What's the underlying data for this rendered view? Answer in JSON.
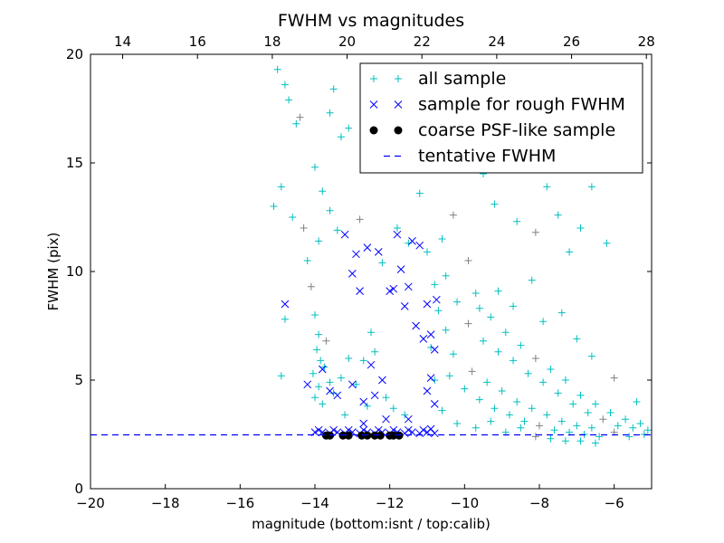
{
  "chart_data": {
    "type": "scatter",
    "title": "FWHM vs magnitudes",
    "xlabel": "magnitude (bottom:isnt / top:calib)",
    "ylabel": "FWHM (pix)",
    "xlim": [
      -20,
      -5
    ],
    "ylim": [
      0,
      20
    ],
    "top_xlim": [
      13.14,
      28.14
    ],
    "x_ticks": [
      -20,
      -18,
      -16,
      -14,
      -12,
      -10,
      -8,
      -6
    ],
    "x_tick_labels": [
      "−20",
      "−18",
      "−16",
      "−14",
      "−12",
      "−10",
      "−8",
      "−6"
    ],
    "top_x_ticks": [
      14,
      16,
      18,
      20,
      22,
      24,
      26,
      28
    ],
    "y_ticks": [
      0,
      5,
      10,
      15,
      20
    ],
    "legend_position": "top-right",
    "grid": false,
    "series": [
      {
        "name": "all sample",
        "marker": "plus",
        "color": "#00bfbf",
        "points": [
          [
            -15.0,
            19.3
          ],
          [
            -14.8,
            18.6
          ],
          [
            -14.7,
            17.9
          ],
          [
            -14.5,
            16.8
          ],
          [
            -14.4,
            17.1
          ],
          [
            -13.5,
            18.4
          ],
          [
            -13.6,
            17.3
          ],
          [
            -13.3,
            16.2
          ],
          [
            -13.1,
            16.6
          ],
          [
            -12.6,
            15.2
          ],
          [
            -15.1,
            13.0
          ],
          [
            -14.9,
            13.9
          ],
          [
            -14.6,
            12.5
          ],
          [
            -14.3,
            12.0
          ],
          [
            -14.0,
            14.8
          ],
          [
            -13.8,
            13.7
          ],
          [
            -13.6,
            12.8
          ],
          [
            -13.9,
            11.4
          ],
          [
            -13.4,
            11.9
          ],
          [
            -14.2,
            10.5
          ],
          [
            -14.8,
            7.8
          ],
          [
            -14.9,
            5.2
          ],
          [
            -14.1,
            9.3
          ],
          [
            -14.0,
            8.0
          ],
          [
            -13.9,
            7.1
          ],
          [
            -13.95,
            6.4
          ],
          [
            -13.85,
            5.9
          ],
          [
            -14.05,
            5.3
          ],
          [
            -13.9,
            4.7
          ],
          [
            -14.0,
            4.2
          ],
          [
            -13.8,
            3.9
          ],
          [
            -13.7,
            6.8
          ],
          [
            -13.75,
            5.6
          ],
          [
            -13.6,
            4.9
          ],
          [
            -13.5,
            4.4
          ],
          [
            -13.3,
            5.1
          ],
          [
            -13.1,
            6.0
          ],
          [
            -12.9,
            4.8
          ],
          [
            -12.7,
            5.9
          ],
          [
            -12.5,
            7.2
          ],
          [
            -12.8,
            12.4
          ],
          [
            -12.2,
            10.4
          ],
          [
            -11.8,
            12.0
          ],
          [
            -11.5,
            11.3
          ],
          [
            -11.2,
            13.6
          ],
          [
            -11.0,
            10.9
          ],
          [
            -10.8,
            9.4
          ],
          [
            -10.7,
            8.2
          ],
          [
            -10.6,
            11.5
          ],
          [
            -10.3,
            12.6
          ],
          [
            -10.1,
            15.2
          ],
          [
            -9.8,
            17.4
          ],
          [
            -9.5,
            14.5
          ],
          [
            -9.2,
            13.1
          ],
          [
            -9.0,
            16.0
          ],
          [
            -8.8,
            18.0
          ],
          [
            -8.6,
            12.3
          ],
          [
            -8.4,
            14.7
          ],
          [
            -8.1,
            11.8
          ],
          [
            -7.8,
            13.9
          ],
          [
            -7.5,
            12.6
          ],
          [
            -7.2,
            10.9
          ],
          [
            -6.9,
            12.0
          ],
          [
            -6.6,
            13.9
          ],
          [
            -6.2,
            11.3
          ],
          [
            -10.5,
            9.8
          ],
          [
            -10.2,
            8.6
          ],
          [
            -9.9,
            7.6
          ],
          [
            -9.7,
            9.0
          ],
          [
            -9.5,
            6.8
          ],
          [
            -9.3,
            7.9
          ],
          [
            -9.1,
            6.3
          ],
          [
            -8.9,
            7.2
          ],
          [
            -8.7,
            5.9
          ],
          [
            -8.5,
            6.6
          ],
          [
            -8.3,
            5.3
          ],
          [
            -8.1,
            6.0
          ],
          [
            -7.9,
            4.9
          ],
          [
            -7.7,
            5.5
          ],
          [
            -7.5,
            4.4
          ],
          [
            -7.3,
            5.0
          ],
          [
            -7.1,
            3.9
          ],
          [
            -6.9,
            4.3
          ],
          [
            -6.7,
            3.5
          ],
          [
            -6.5,
            3.9
          ],
          [
            -6.3,
            3.2
          ],
          [
            -6.1,
            3.5
          ],
          [
            -5.9,
            2.9
          ],
          [
            -5.7,
            3.2
          ],
          [
            -5.5,
            2.8
          ],
          [
            -5.3,
            3.0
          ],
          [
            -5.1,
            2.7
          ],
          [
            -10.4,
            5.2
          ],
          [
            -10.0,
            4.6
          ],
          [
            -9.8,
            5.4
          ],
          [
            -9.6,
            4.1
          ],
          [
            -9.4,
            4.9
          ],
          [
            -9.2,
            3.7
          ],
          [
            -9.0,
            4.5
          ],
          [
            -8.8,
            3.4
          ],
          [
            -8.6,
            4.0
          ],
          [
            -8.4,
            3.1
          ],
          [
            -8.2,
            3.7
          ],
          [
            -8.0,
            2.9
          ],
          [
            -7.8,
            3.4
          ],
          [
            -7.6,
            2.7
          ],
          [
            -7.4,
            3.1
          ],
          [
            -7.2,
            2.6
          ],
          [
            -7.0,
            2.9
          ],
          [
            -6.8,
            2.5
          ],
          [
            -6.6,
            2.8
          ],
          [
            -6.4,
            2.4
          ],
          [
            -6.0,
            2.6
          ],
          [
            -5.6,
            2.4
          ],
          [
            -5.2,
            2.5
          ],
          [
            -10.6,
            3.6
          ],
          [
            -10.2,
            3.0
          ],
          [
            -9.7,
            2.8
          ],
          [
            -9.3,
            3.1
          ],
          [
            -8.9,
            2.6
          ],
          [
            -8.5,
            2.8
          ],
          [
            -8.1,
            2.4
          ],
          [
            -7.7,
            2.3
          ],
          [
            -7.3,
            2.2
          ],
          [
            -6.9,
            2.2
          ],
          [
            -6.5,
            2.1
          ],
          [
            -10.9,
            6.5
          ],
          [
            -10.8,
            5.0
          ],
          [
            -10.5,
            7.3
          ],
          [
            -10.3,
            6.2
          ],
          [
            -9.9,
            10.5
          ],
          [
            -9.6,
            8.3
          ],
          [
            -9.1,
            9.1
          ],
          [
            -8.7,
            8.4
          ],
          [
            -8.2,
            9.6
          ],
          [
            -7.9,
            7.7
          ],
          [
            -7.4,
            8.1
          ],
          [
            -7.0,
            6.9
          ],
          [
            -6.6,
            6.1
          ],
          [
            -6.0,
            5.1
          ],
          [
            -5.4,
            4.0
          ],
          [
            -12.4,
            6.3
          ],
          [
            -12.1,
            4.2
          ],
          [
            -11.9,
            3.7
          ],
          [
            -11.6,
            3.4
          ],
          [
            -12.6,
            3.8
          ],
          [
            -13.2,
            3.4
          ]
        ]
      },
      {
        "name": "sample for rough FWHM",
        "marker": "x",
        "color": "#0000ff",
        "points": [
          [
            -14.8,
            8.5
          ],
          [
            -14.2,
            4.8
          ],
          [
            -13.8,
            5.5
          ],
          [
            -13.6,
            4.5
          ],
          [
            -13.4,
            4.3
          ],
          [
            -13.2,
            11.7
          ],
          [
            -13.0,
            9.9
          ],
          [
            -12.9,
            10.8
          ],
          [
            -12.8,
            9.1
          ],
          [
            -12.6,
            11.1
          ],
          [
            -12.5,
            5.7
          ],
          [
            -12.4,
            4.3
          ],
          [
            -12.3,
            10.9
          ],
          [
            -12.2,
            5.0
          ],
          [
            -12.0,
            9.1
          ],
          [
            -11.9,
            9.2
          ],
          [
            -11.8,
            11.7
          ],
          [
            -11.7,
            10.1
          ],
          [
            -11.6,
            8.4
          ],
          [
            -11.5,
            9.3
          ],
          [
            -11.4,
            11.4
          ],
          [
            -11.3,
            7.5
          ],
          [
            -11.2,
            11.2
          ],
          [
            -11.1,
            6.9
          ],
          [
            -11.0,
            8.5
          ],
          [
            -11.0,
            4.5
          ],
          [
            -10.9,
            7.1
          ],
          [
            -10.9,
            5.1
          ],
          [
            -10.8,
            6.4
          ],
          [
            -10.8,
            3.9
          ],
          [
            -10.75,
            8.7
          ],
          [
            -12.7,
            4.0
          ],
          [
            -13.0,
            4.8
          ],
          [
            -12.1,
            3.2
          ],
          [
            -11.5,
            3.2
          ],
          [
            -12.7,
            3.0
          ],
          [
            -14.0,
            2.6
          ],
          [
            -13.8,
            2.6
          ],
          [
            -13.6,
            2.55
          ],
          [
            -13.4,
            2.6
          ],
          [
            -13.2,
            2.55
          ],
          [
            -13.0,
            2.6
          ],
          [
            -12.8,
            2.55
          ],
          [
            -12.6,
            2.6
          ],
          [
            -12.4,
            2.55
          ],
          [
            -12.2,
            2.6
          ],
          [
            -12.0,
            2.55
          ],
          [
            -11.8,
            2.6
          ],
          [
            -11.6,
            2.55
          ],
          [
            -11.4,
            2.6
          ],
          [
            -11.2,
            2.55
          ],
          [
            -11.0,
            2.6
          ],
          [
            -10.8,
            2.55
          ],
          [
            -13.9,
            2.7
          ],
          [
            -13.5,
            2.7
          ],
          [
            -13.1,
            2.7
          ],
          [
            -12.7,
            2.7
          ],
          [
            -12.3,
            2.7
          ],
          [
            -11.9,
            2.7
          ],
          [
            -11.5,
            2.7
          ],
          [
            -11.1,
            2.7
          ],
          [
            -10.9,
            2.75
          ]
        ]
      },
      {
        "name": "coarse PSF-like sample",
        "marker": "circle",
        "color": "#000000",
        "points": [
          [
            -13.7,
            2.45
          ],
          [
            -13.6,
            2.45
          ],
          [
            -13.25,
            2.45
          ],
          [
            -13.1,
            2.45
          ],
          [
            -12.75,
            2.45
          ],
          [
            -12.6,
            2.45
          ],
          [
            -12.4,
            2.45
          ],
          [
            -12.25,
            2.45
          ],
          [
            -12.0,
            2.45
          ],
          [
            -11.9,
            2.45
          ],
          [
            -11.75,
            2.45
          ]
        ]
      },
      {
        "name": "tentative FWHM",
        "marker": "dashed-line",
        "color": "#0000ff",
        "y": 2.48
      }
    ]
  }
}
